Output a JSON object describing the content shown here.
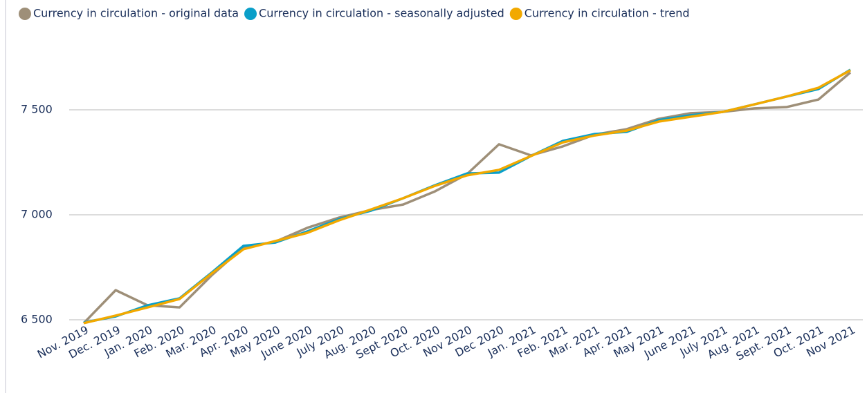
{
  "chart_data": {
    "type": "line",
    "categories": [
      "Nov. 2019",
      "Dec. 2019",
      "Jan. 2020",
      "Feb. 2020",
      "Mar. 2020",
      "Apr. 2020",
      "May 2020",
      "June 2020",
      "July 2020",
      "Aug. 2020",
      "Sept 2020",
      "Oct. 2020",
      "Nov 2020",
      "Dec 2020",
      "Jan. 2021",
      "Feb. 2021",
      "Mar. 2021",
      "Apr. 2021",
      "May 2021",
      "June 2021",
      "July 2021",
      "Aug. 2021",
      "Sept. 2021",
      "Oct. 2021",
      "Nov 2021"
    ],
    "series": [
      {
        "name": "Currency in circulation - original data",
        "color": "#9e8f78",
        "values": [
          6484,
          6641,
          6569,
          6559,
          6711,
          6845,
          6872,
          6938,
          6987,
          7023,
          7049,
          7112,
          7194,
          7336,
          7283,
          7326,
          7382,
          7408,
          7457,
          7484,
          7490,
          7507,
          7513,
          7549,
          7678
        ]
      },
      {
        "name": "Currency in circulation - seasonally adjusted",
        "color": "#0a9fc9",
        "values": [
          6487,
          6516,
          6569,
          6602,
          6724,
          6852,
          6868,
          6921,
          6980,
          7020,
          7079,
          7141,
          7197,
          7201,
          7280,
          7352,
          7385,
          7395,
          7451,
          7474,
          7490,
          7526,
          7563,
          7599,
          7691
        ]
      },
      {
        "name": "Currency in circulation - trend",
        "color": "#f2a900",
        "values": [
          6484,
          6520,
          6559,
          6599,
          6720,
          6836,
          6875,
          6914,
          6974,
          7026,
          7079,
          7138,
          7188,
          7214,
          7280,
          7345,
          7378,
          7401,
          7444,
          7467,
          7490,
          7526,
          7563,
          7605,
          7688
        ]
      }
    ],
    "ylim": [
      6500,
      7850
    ],
    "yticks": [
      {
        "value": 6500,
        "label": "6 500"
      },
      {
        "value": 7000,
        "label": "7 000"
      },
      {
        "value": 7500,
        "label": "7 500"
      }
    ],
    "grid": true,
    "legend": "top-left"
  }
}
